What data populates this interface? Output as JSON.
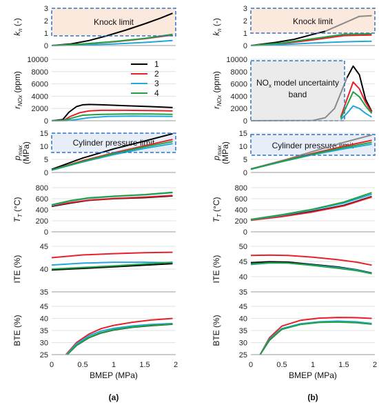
{
  "panel_labels": {
    "a": "(a)",
    "b": "(b)"
  },
  "legend": [
    {
      "label": "1",
      "color": "#000000"
    },
    {
      "label": "2",
      "color": "#e8202a"
    },
    {
      "label": "3",
      "color": "#21a7dd"
    },
    {
      "label": "4",
      "color": "#21a142"
    }
  ],
  "annotations": {
    "knock": "Knock limit",
    "nox_band_line1": "NO",
    "nox_band_sub": "x",
    "nox_band_line2": " model uncertainty",
    "nox_band_line3": "band",
    "pressure": "Cylinder pressure limit"
  },
  "x_axis": {
    "label": "BMEP (MPa)",
    "ticks": [
      "0",
      "0.5",
      "1",
      "1.5",
      "2"
    ],
    "range": [
      0,
      2
    ]
  },
  "colors": {
    "knock_fill": "#fbe9dd",
    "pressure_fill": "#e7eef8",
    "nox_fill": "#ebebeb",
    "limit_border": "#2f73c9",
    "faded": "#8a8a8a"
  },
  "chart_data": [
    {
      "id": "a_kn",
      "type": "line",
      "ylabel": "k_n (-)",
      "ylim": [
        0,
        3
      ],
      "yticks": [
        "0",
        "1",
        "2",
        "3"
      ],
      "series": [
        {
          "name": "1",
          "x": [
            0,
            0.3,
            0.6,
            0.9,
            1.2,
            1.5,
            1.75,
            1.95
          ],
          "y": [
            0,
            0.12,
            0.4,
            0.8,
            1.25,
            1.75,
            2.2,
            2.6
          ]
        },
        {
          "name": "2",
          "x": [
            0,
            0.5,
            1.0,
            1.5,
            1.95
          ],
          "y": [
            0,
            0.12,
            0.3,
            0.55,
            0.85
          ]
        },
        {
          "name": "3",
          "x": [
            0,
            0.5,
            1.0,
            1.5,
            1.95
          ],
          "y": [
            0,
            0.05,
            0.12,
            0.25,
            0.4
          ]
        },
        {
          "name": "4",
          "x": [
            0,
            0.5,
            1.0,
            1.5,
            1.95
          ],
          "y": [
            0,
            0.12,
            0.32,
            0.58,
            0.9
          ]
        }
      ]
    },
    {
      "id": "a_nox",
      "type": "line",
      "ylabel": "r_NOx (ppm)",
      "ylim": [
        0,
        10000
      ],
      "yticks": [
        "0",
        "2000",
        "4000",
        "6000",
        "8000",
        "10000"
      ],
      "series": [
        {
          "name": "1",
          "x": [
            0,
            0.18,
            0.28,
            0.4,
            0.5,
            0.6,
            0.8,
            1.2,
            1.6,
            1.95
          ],
          "y": [
            0,
            200,
            1400,
            2300,
            2600,
            2650,
            2600,
            2450,
            2300,
            2150
          ]
        },
        {
          "name": "2",
          "x": [
            0,
            0.2,
            0.3,
            0.45,
            0.6,
            0.8,
            1.2,
            1.6,
            1.95
          ],
          "y": [
            0,
            100,
            700,
            1300,
            1600,
            1700,
            1700,
            1650,
            1600
          ]
        },
        {
          "name": "3",
          "x": [
            0,
            0.25,
            0.4,
            0.6,
            0.9,
            1.3,
            1.95
          ],
          "y": [
            0,
            30,
            200,
            500,
            700,
            750,
            700
          ]
        },
        {
          "name": "4",
          "x": [
            0,
            0.2,
            0.35,
            0.5,
            0.8,
            1.2,
            1.6,
            1.95
          ],
          "y": [
            0,
            60,
            500,
            900,
            1050,
            1100,
            1100,
            1050
          ]
        }
      ]
    },
    {
      "id": "a_pmax",
      "type": "line",
      "ylabel": "p_max (MPa)",
      "ylim": [
        0,
        15
      ],
      "yticks": [
        "0",
        "5",
        "10",
        "15"
      ],
      "series": [
        {
          "name": "1",
          "x": [
            0,
            0.5,
            1.0,
            1.5,
            1.95
          ],
          "y": [
            1.2,
            5.5,
            9.0,
            12.0,
            14.8
          ]
        },
        {
          "name": "2",
          "x": [
            0,
            0.5,
            1.0,
            1.5,
            1.95
          ],
          "y": [
            1.0,
            4.5,
            7.5,
            10.2,
            12.6
          ]
        },
        {
          "name": "3",
          "x": [
            0,
            0.5,
            1.0,
            1.5,
            1.95
          ],
          "y": [
            0.9,
            4.0,
            6.8,
            9.2,
            11.0
          ]
        },
        {
          "name": "4",
          "x": [
            0,
            0.5,
            1.0,
            1.5,
            1.95
          ],
          "y": [
            1.0,
            4.2,
            7.2,
            9.8,
            11.8
          ]
        }
      ]
    },
    {
      "id": "a_tt",
      "type": "line",
      "ylabel": "T_T (°C)",
      "ylim": [
        0,
        800
      ],
      "yticks": [
        "0",
        "200",
        "400",
        "600",
        "800"
      ],
      "series": [
        {
          "name": "1",
          "x": [
            0,
            0.3,
            0.6,
            1.0,
            1.5,
            1.95
          ],
          "y": [
            460,
            520,
            570,
            600,
            620,
            650
          ]
        },
        {
          "name": "2",
          "x": [
            0,
            0.3,
            0.6,
            1.0,
            1.5,
            1.95
          ],
          "y": [
            470,
            530,
            575,
            605,
            630,
            660
          ]
        },
        {
          "name": "3",
          "x": [
            0,
            0.3,
            0.6,
            1.0,
            1.5,
            1.95
          ],
          "y": [
            480,
            560,
            610,
            640,
            670,
            710
          ]
        },
        {
          "name": "4",
          "x": [
            0,
            0.3,
            0.6,
            1.0,
            1.5,
            1.95
          ],
          "y": [
            490,
            565,
            615,
            645,
            675,
            715
          ]
        }
      ]
    },
    {
      "id": "a_ite",
      "type": "line",
      "ylabel": "ITE (%)",
      "ylim": [
        35,
        45
      ],
      "yticks": [
        "35",
        "40",
        "45"
      ],
      "series": [
        {
          "name": "1",
          "x": [
            0,
            1.0,
            1.95
          ],
          "y": [
            39.8,
            40.5,
            41.2
          ]
        },
        {
          "name": "2",
          "x": [
            0,
            0.5,
            1.0,
            1.5,
            1.95
          ],
          "y": [
            42.5,
            43.1,
            43.4,
            43.6,
            43.7
          ]
        },
        {
          "name": "3",
          "x": [
            0,
            0.5,
            1.0,
            1.5,
            1.95
          ],
          "y": [
            40.9,
            41.3,
            41.5,
            41.5,
            41.4
          ]
        },
        {
          "name": "4",
          "x": [
            0,
            1.0,
            1.95
          ],
          "y": [
            40.0,
            40.7,
            41.5
          ]
        }
      ]
    },
    {
      "id": "a_bte",
      "type": "line",
      "ylabel": "BTE (%)",
      "ylim": [
        25,
        45
      ],
      "yticks": [
        "25",
        "30",
        "35",
        "40",
        "45"
      ],
      "series": [
        {
          "name": "1",
          "x": [
            0.25,
            0.4,
            0.6,
            0.8,
            1.0,
            1.3,
            1.6,
            1.95
          ],
          "y": [
            25,
            28.8,
            32,
            34,
            35.2,
            36.3,
            37.0,
            37.6
          ]
        },
        {
          "name": "2",
          "x": [
            0.23,
            0.4,
            0.6,
            0.8,
            1.0,
            1.3,
            1.6,
            1.95
          ],
          "y": [
            25,
            30,
            33.5,
            35.8,
            37.1,
            38.4,
            39.3,
            40.0
          ]
        },
        {
          "name": "3",
          "x": [
            0.24,
            0.4,
            0.6,
            0.8,
            1.0,
            1.3,
            1.6,
            1.95
          ],
          "y": [
            25,
            29.5,
            32.8,
            34.8,
            35.9,
            36.9,
            37.5,
            37.9
          ]
        },
        {
          "name": "4",
          "x": [
            0.25,
            0.4,
            0.6,
            0.8,
            1.0,
            1.3,
            1.6,
            1.95
          ],
          "y": [
            25,
            28.9,
            32.1,
            34.1,
            35.3,
            36.4,
            37.1,
            37.7
          ]
        }
      ]
    },
    {
      "id": "b_kn",
      "type": "line",
      "ylabel": "k_n (-)",
      "ylim": [
        0,
        3
      ],
      "yticks": [
        "0",
        "1",
        "2",
        "3"
      ],
      "series": [
        {
          "name": "1",
          "x": [
            0,
            0.4,
            0.7,
            1.0,
            1.2
          ],
          "y": [
            0,
            0.25,
            0.5,
            0.9,
            1.15
          ]
        },
        {
          "name": "1",
          "faded": true,
          "x": [
            1.2,
            1.5,
            1.75,
            1.95
          ],
          "y": [
            1.15,
            1.8,
            2.35,
            2.4
          ]
        },
        {
          "name": "2",
          "x": [
            0,
            0.5,
            1.0,
            1.5,
            1.95
          ],
          "y": [
            0,
            0.15,
            0.45,
            0.8,
            0.85
          ]
        },
        {
          "name": "3",
          "x": [
            0,
            0.5,
            1.0,
            1.5,
            1.95
          ],
          "y": [
            0,
            0.08,
            0.2,
            0.3,
            0.35
          ]
        },
        {
          "name": "4",
          "x": [
            0,
            0.5,
            1.0,
            1.5,
            1.95
          ],
          "y": [
            0,
            0.2,
            0.55,
            0.9,
            0.95
          ]
        }
      ]
    },
    {
      "id": "b_nox",
      "type": "line",
      "ylabel": "r_NOx (ppm)",
      "ylim": [
        0,
        10000
      ],
      "yticks": [
        "0",
        "2000",
        "4000",
        "6000",
        "8000",
        "10000"
      ],
      "series": [
        {
          "name": "1",
          "faded": true,
          "x": [
            0,
            1.0,
            1.2,
            1.35,
            1.45,
            1.55
          ],
          "y": [
            0,
            50,
            500,
            2000,
            4500,
            7000
          ]
        },
        {
          "name": "1",
          "x": [
            1.55,
            1.65,
            1.75,
            1.85,
            1.95
          ],
          "y": [
            7000,
            8900,
            7500,
            3500,
            1500
          ]
        },
        {
          "name": "2",
          "x": [
            1.45,
            1.55,
            1.65,
            1.75,
            1.85,
            1.95
          ],
          "y": [
            600,
            3500,
            6300,
            5200,
            3000,
            1400
          ]
        },
        {
          "name": "3",
          "x": [
            1.45,
            1.55,
            1.65,
            1.75,
            1.85,
            1.95
          ],
          "y": [
            200,
            1200,
            2400,
            2000,
            1200,
            600
          ]
        },
        {
          "name": "4",
          "x": [
            1.45,
            1.55,
            1.65,
            1.75,
            1.85,
            1.95
          ],
          "y": [
            400,
            2500,
            4700,
            3900,
            2400,
            1200
          ]
        }
      ]
    },
    {
      "id": "b_pmax",
      "type": "line",
      "ylabel": "p_max (MPa)",
      "ylim": [
        0,
        15
      ],
      "yticks": [
        "0",
        "5",
        "10",
        "15"
      ],
      "series": [
        {
          "name": "1",
          "faded": true,
          "x": [
            0,
            0.5,
            1.0,
            1.5,
            1.95
          ],
          "y": [
            1.4,
            4.5,
            8.0,
            11.5,
            14.3
          ]
        },
        {
          "name": "2",
          "x": [
            0,
            0.5,
            1.0,
            1.5,
            1.95
          ],
          "y": [
            1.3,
            4.3,
            7.3,
            10.0,
            12.3
          ]
        },
        {
          "name": "3",
          "x": [
            0,
            0.5,
            1.0,
            1.5,
            1.95
          ],
          "y": [
            1.2,
            4.1,
            6.8,
            9.0,
            10.8
          ]
        },
        {
          "name": "4",
          "x": [
            0,
            0.5,
            1.0,
            1.5,
            1.95
          ],
          "y": [
            1.3,
            4.2,
            7.0,
            9.5,
            11.5
          ]
        }
      ]
    },
    {
      "id": "b_tt",
      "type": "line",
      "ylabel": "T_T (°C)",
      "ylim": [
        0,
        800
      ],
      "yticks": [
        "0",
        "200",
        "400",
        "600",
        "800"
      ],
      "series": [
        {
          "name": "1",
          "x": [
            0,
            0.5,
            1.0,
            1.5,
            1.95
          ],
          "y": [
            215,
            280,
            370,
            480,
            640
          ]
        },
        {
          "name": "2",
          "x": [
            0,
            0.5,
            1.0,
            1.5,
            1.95
          ],
          "y": [
            210,
            275,
            360,
            470,
            630
          ]
        },
        {
          "name": "3",
          "x": [
            0,
            0.5,
            1.0,
            1.5,
            1.95
          ],
          "y": [
            220,
            300,
            400,
            520,
            680
          ]
        },
        {
          "name": "4",
          "x": [
            0,
            0.5,
            1.0,
            1.5,
            1.95
          ],
          "y": [
            225,
            310,
            410,
            540,
            710
          ]
        }
      ]
    },
    {
      "id": "b_ite",
      "type": "line",
      "ylabel": "ITE (%)",
      "ylim": [
        35,
        50
      ],
      "yticks": [
        "35",
        "40",
        "45",
        "50"
      ],
      "series": [
        {
          "name": "1",
          "x": [
            0,
            0.3,
            0.6,
            1.0,
            1.4,
            1.7,
            1.95
          ],
          "y": [
            44.6,
            44.9,
            44.8,
            44.0,
            43.2,
            42.3,
            41.2
          ]
        },
        {
          "name": "2",
          "x": [
            0,
            0.3,
            0.6,
            1.0,
            1.4,
            1.7,
            1.95
          ],
          "y": [
            47.0,
            47.1,
            47.0,
            46.4,
            45.6,
            44.8,
            43.8
          ]
        },
        {
          "name": "3",
          "x": [
            0,
            0.3,
            0.6,
            1.0,
            1.4,
            1.7,
            1.95
          ],
          "y": [
            44.0,
            44.5,
            44.5,
            43.8,
            43.0,
            42.2,
            41.1
          ]
        },
        {
          "name": "4",
          "x": [
            0,
            0.3,
            0.6,
            1.0,
            1.4,
            1.7,
            1.95
          ],
          "y": [
            44.2,
            44.6,
            44.5,
            43.7,
            42.8,
            42.0,
            41.0
          ]
        }
      ]
    },
    {
      "id": "b_bte",
      "type": "line",
      "ylabel": "BTE (%)",
      "ylim": [
        25,
        45
      ],
      "yticks": [
        "25",
        "30",
        "35",
        "40",
        "45"
      ],
      "series": [
        {
          "name": "1",
          "x": [
            0.15,
            0.3,
            0.5,
            0.8,
            1.1,
            1.4,
            1.7,
            1.95
          ],
          "y": [
            25,
            31,
            35.5,
            37.6,
            38.5,
            38.8,
            38.5,
            37.8
          ]
        },
        {
          "name": "2",
          "x": [
            0.15,
            0.3,
            0.5,
            0.8,
            1.1,
            1.4,
            1.7,
            1.95
          ],
          "y": [
            25,
            32,
            36.8,
            39.2,
            40.1,
            40.4,
            40.3,
            40.0
          ]
        },
        {
          "name": "3",
          "x": [
            0.15,
            0.3,
            0.5,
            0.8,
            1.1,
            1.4,
            1.7,
            1.95
          ],
          "y": [
            25,
            31.5,
            35.8,
            37.8,
            38.6,
            38.9,
            38.6,
            37.9
          ]
        },
        {
          "name": "4",
          "x": [
            0.15,
            0.3,
            0.5,
            0.8,
            1.1,
            1.4,
            1.7,
            1.95
          ],
          "y": [
            25,
            31.2,
            35.5,
            37.5,
            38.3,
            38.5,
            38.2,
            37.6
          ]
        }
      ]
    }
  ]
}
